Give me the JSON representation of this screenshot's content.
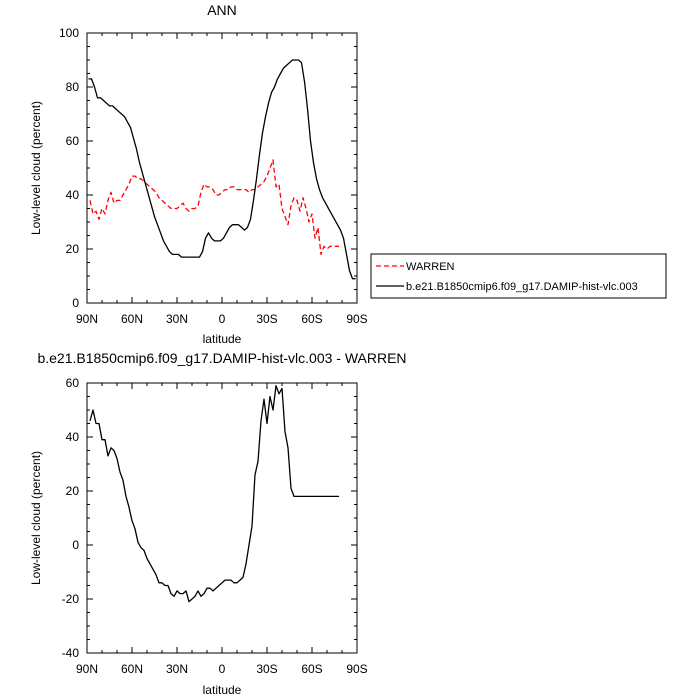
{
  "chart_data": [
    {
      "type": "line",
      "title": "ANN",
      "xlabel": "latitude",
      "ylabel": "Low-level cloud (percent)",
      "xlim": [
        90,
        -90
      ],
      "ylim": [
        0,
        100
      ],
      "xticks": [
        {
          "value": 90,
          "label": "90N"
        },
        {
          "value": 60,
          "label": "60N"
        },
        {
          "value": 30,
          "label": "30N"
        },
        {
          "value": 0,
          "label": "0"
        },
        {
          "value": -30,
          "label": "30S"
        },
        {
          "value": -60,
          "label": "60S"
        },
        {
          "value": -90,
          "label": "90S"
        }
      ],
      "yticks": [
        0,
        20,
        40,
        60,
        80,
        100
      ],
      "legend_position": "right",
      "series": [
        {
          "name": "WARREN",
          "color": "#ff0000",
          "dash": "dashed",
          "x": [
            88,
            86,
            84,
            82,
            80,
            78,
            76,
            74,
            72,
            70,
            68,
            66,
            64,
            62,
            60,
            58,
            56,
            54,
            52,
            50,
            48,
            46,
            44,
            42,
            40,
            38,
            36,
            34,
            32,
            30,
            28,
            26,
            24,
            22,
            20,
            18,
            16,
            14,
            12,
            10,
            8,
            6,
            4,
            2,
            0,
            -2,
            -4,
            -6,
            -8,
            -10,
            -12,
            -14,
            -16,
            -18,
            -20,
            -22,
            -24,
            -26,
            -28,
            -30,
            -32,
            -34,
            -36,
            -38,
            -40,
            -42,
            -44,
            -46,
            -48,
            -50,
            -52,
            -54,
            -56,
            -58,
            -60,
            -62,
            -64,
            -66,
            -68,
            -70,
            -72,
            -74,
            -76,
            -78
          ],
          "y": [
            38,
            33,
            34,
            31,
            35,
            33,
            38,
            41,
            37,
            38,
            38,
            40,
            42,
            44,
            47,
            47,
            46,
            46,
            45,
            44,
            43,
            42,
            41,
            39,
            38,
            37,
            36,
            35,
            35,
            35,
            36,
            37,
            35,
            34,
            35,
            35,
            36,
            41,
            44,
            43,
            43,
            42,
            40,
            40,
            41,
            42,
            42,
            43,
            43,
            42,
            42,
            42,
            42,
            41,
            42,
            42,
            43,
            44,
            45,
            47,
            50,
            53,
            43,
            44,
            35,
            32,
            29,
            36,
            39,
            38,
            34,
            39,
            35,
            30,
            33,
            24,
            28,
            18,
            21,
            20,
            21,
            21,
            21,
            21
          ]
        },
        {
          "name": "b.e21.B1850cmip6.f09_g17.DAMIP-hist-vlc.003",
          "color": "#000000",
          "dash": "solid",
          "x": [
            89,
            87,
            85,
            83,
            81,
            79,
            77,
            75,
            73,
            71,
            69,
            67,
            65,
            63,
            61,
            59,
            57,
            55,
            53,
            51,
            49,
            47,
            45,
            43,
            41,
            39,
            37,
            35,
            33,
            31,
            29,
            27,
            25,
            23,
            21,
            19,
            17,
            15,
            13,
            11,
            9,
            7,
            5,
            3,
            1,
            -1,
            -3,
            -5,
            -7,
            -9,
            -11,
            -13,
            -15,
            -17,
            -19,
            -21,
            -23,
            -25,
            -27,
            -29,
            -31,
            -33,
            -35,
            -37,
            -39,
            -41,
            -43,
            -45,
            -47,
            -49,
            -51,
            -53,
            -55,
            -57,
            -59,
            -61,
            -63,
            -65,
            -67,
            -69,
            -71,
            -73,
            -75,
            -77,
            -79,
            -81,
            -83,
            -85,
            -87,
            -89
          ],
          "y": [
            83,
            83,
            80,
            76,
            76,
            75,
            74,
            73,
            73,
            72,
            71,
            70,
            69,
            67,
            65,
            61,
            57,
            52,
            48,
            44,
            40,
            36,
            32,
            29,
            26,
            23,
            21,
            19,
            18,
            18,
            18,
            17,
            17,
            17,
            17,
            17,
            17,
            17,
            19,
            24,
            26,
            24,
            23,
            23,
            23,
            24,
            26,
            28,
            29,
            29,
            29,
            28,
            27,
            28,
            31,
            38,
            46,
            55,
            63,
            69,
            74,
            78,
            80,
            83,
            85,
            87,
            88,
            89,
            90,
            90,
            90,
            89,
            82,
            72,
            60,
            52,
            46,
            42,
            39,
            37,
            35,
            33,
            31,
            29,
            27,
            24,
            18,
            12,
            9,
            9
          ]
        }
      ]
    },
    {
      "type": "line",
      "title": "b.e21.B1850cmip6.f09_g17.DAMIP-hist-vlc.003 - WARREN",
      "xlabel": "latitude",
      "ylabel": "Low-level cloud (percent)",
      "xlim": [
        90,
        -90
      ],
      "ylim": [
        -40,
        60
      ],
      "xticks": [
        {
          "value": 90,
          "label": "90N"
        },
        {
          "value": 60,
          "label": "60N"
        },
        {
          "value": 30,
          "label": "30N"
        },
        {
          "value": 0,
          "label": "0"
        },
        {
          "value": -30,
          "label": "30S"
        },
        {
          "value": -60,
          "label": "60S"
        },
        {
          "value": -90,
          "label": "90S"
        }
      ],
      "yticks": [
        -40,
        -20,
        0,
        20,
        40,
        60
      ],
      "series": [
        {
          "color": "#000000",
          "dash": "solid",
          "x": [
            88,
            86,
            84,
            82,
            80,
            78,
            76,
            74,
            72,
            70,
            68,
            66,
            64,
            62,
            60,
            58,
            56,
            54,
            52,
            50,
            48,
            46,
            44,
            42,
            40,
            38,
            36,
            34,
            32,
            30,
            28,
            26,
            24,
            22,
            20,
            18,
            16,
            14,
            12,
            10,
            8,
            6,
            4,
            2,
            0,
            -2,
            -4,
            -6,
            -8,
            -10,
            -12,
            -14,
            -16,
            -18,
            -20,
            -22,
            -24,
            -26,
            -28,
            -30,
            -32,
            -34,
            -36,
            -38,
            -40,
            -42,
            -44,
            -46,
            -48,
            -50,
            -52,
            -54,
            -56,
            -58,
            -60,
            -62,
            -64,
            -66,
            -68,
            -70,
            -72,
            -74,
            -76,
            -78
          ],
          "y": [
            46,
            50,
            45,
            45,
            39,
            39,
            33,
            36,
            35,
            32,
            27,
            24,
            18,
            14,
            9,
            6,
            1,
            -1,
            -2,
            -5,
            -7,
            -9,
            -11,
            -14,
            -14,
            -15,
            -15,
            -18,
            -19,
            -17,
            -18,
            -18,
            -17,
            -21,
            -20,
            -19,
            -17,
            -19,
            -18,
            -16,
            -16,
            -17,
            -16,
            -15,
            -14,
            -13,
            -13,
            -13,
            -14,
            -14,
            -13,
            -12,
            -7,
            0,
            7,
            26,
            31,
            46,
            54,
            45,
            55,
            50,
            59,
            56,
            58,
            42,
            36,
            21,
            18,
            18,
            18,
            18,
            18,
            18,
            18,
            18,
            18,
            18,
            18,
            18,
            18,
            18,
            18,
            18
          ]
        }
      ]
    }
  ]
}
